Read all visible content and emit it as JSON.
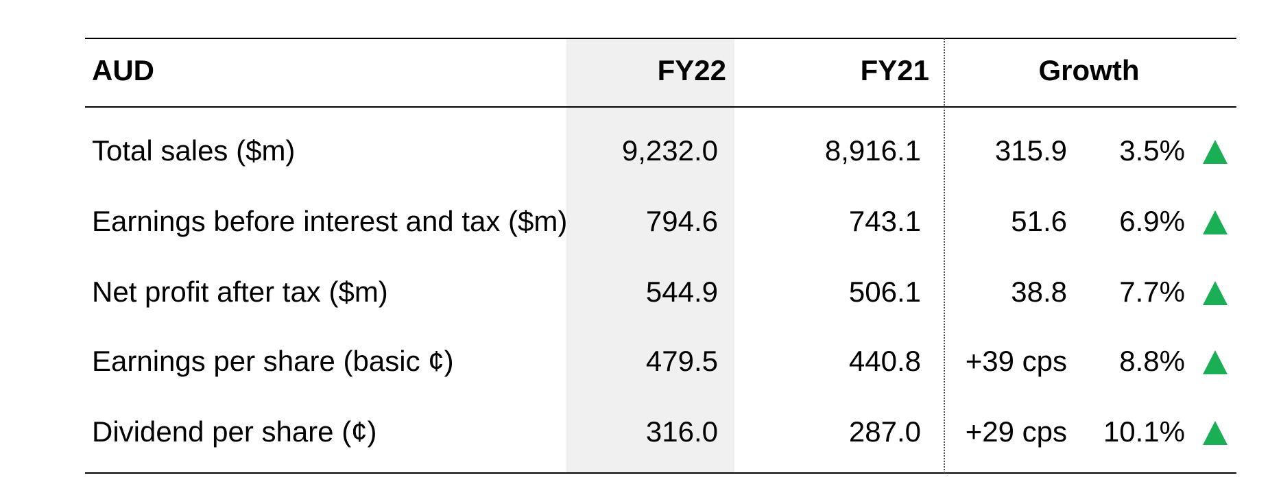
{
  "table": {
    "header": [
      "AUD",
      "FY22",
      "FY21",
      "Growth"
    ],
    "rows": [
      [
        "Total sales ($m)",
        "9,232.0",
        "8,916.1",
        "315.9",
        "3.5%"
      ],
      [
        "Earnings before interest and tax ($m)",
        "794.6",
        "743.1",
        "51.6",
        "6.9%"
      ],
      [
        "Net profit after tax ($m)",
        "544.9",
        "506.1",
        "38.8",
        "7.7%"
      ],
      [
        "Earnings per share (basic ¢)",
        "479.5",
        "440.8",
        "+39 cps",
        "8.8%"
      ],
      [
        "Dividend per share (¢)",
        "316.0",
        "287.0",
        "+29 cps",
        "10.1%"
      ]
    ]
  }
}
